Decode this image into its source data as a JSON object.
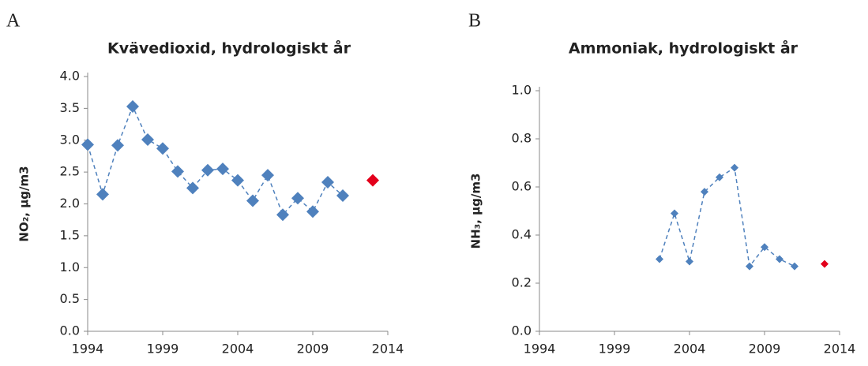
{
  "chart_data": [
    {
      "type": "line",
      "panel_label": "A",
      "title": "Kvävedioxid, hydrologiskt år",
      "ylabel": "NO₂, µg/m3",
      "xlim": [
        1994,
        2014
      ],
      "xticks": [
        1994,
        1999,
        2004,
        2009,
        2014
      ],
      "ylim": [
        0,
        4
      ],
      "yticks": [
        {
          "value": 0,
          "label": "0.0"
        },
        {
          "value": 0.5,
          "label": "0.5"
        },
        {
          "value": 1,
          "label": "1.0"
        },
        {
          "value": 1.5,
          "label": "1.5"
        },
        {
          "value": 2,
          "label": "2.0"
        },
        {
          "value": 2.5,
          "label": "2.5"
        },
        {
          "value": 3,
          "label": "3.0"
        },
        {
          "value": 3.5,
          "label": "3.5"
        },
        {
          "value": 4,
          "label": "4.0"
        }
      ],
      "series": [
        {
          "color": "#4f81bd",
          "line_style": "dashed",
          "x": [
            1994,
            1995,
            1996,
            1997,
            1998,
            1999,
            2000,
            2001,
            2002,
            2003,
            2004,
            2005,
            2006,
            2007,
            2008,
            2009,
            2010,
            2011
          ],
          "values": [
            2.93,
            2.15,
            2.92,
            3.53,
            3.01,
            2.87,
            2.51,
            2.25,
            2.53,
            2.55,
            2.37,
            2.05,
            2.45,
            1.83,
            2.09,
            1.88,
            2.34,
            2.13
          ]
        },
        {
          "color": "#e3001b",
          "x": [
            2013
          ],
          "values": [
            2.37
          ]
        }
      ]
    },
    {
      "type": "line",
      "panel_label": "B",
      "title": "Ammoniak, hydrologiskt år",
      "ylabel": "NH₃, µg/m3",
      "xlim": [
        1994,
        2014
      ],
      "xticks": [
        1994,
        1999,
        2004,
        2009,
        2014
      ],
      "ylim": [
        0,
        1
      ],
      "yticks": [
        {
          "value": 0,
          "label": "0.0"
        },
        {
          "value": 0.2,
          "label": "0.2"
        },
        {
          "value": 0.4,
          "label": "0.4"
        },
        {
          "value": 0.6,
          "label": "0.6"
        },
        {
          "value": 0.8,
          "label": "0.8"
        },
        {
          "value": 1,
          "label": "1.0"
        }
      ],
      "series": [
        {
          "color": "#4f81bd",
          "line_style": "dashed",
          "x": [
            2002,
            2003,
            2004,
            2005,
            2006,
            2007,
            2008,
            2009,
            2010,
            2011
          ],
          "values": [
            0.3,
            0.49,
            0.29,
            0.58,
            0.64,
            0.68,
            0.27,
            0.35,
            0.3,
            0.27
          ]
        },
        {
          "color": "#e3001b",
          "x": [
            2013
          ],
          "values": [
            0.28
          ]
        }
      ]
    }
  ]
}
